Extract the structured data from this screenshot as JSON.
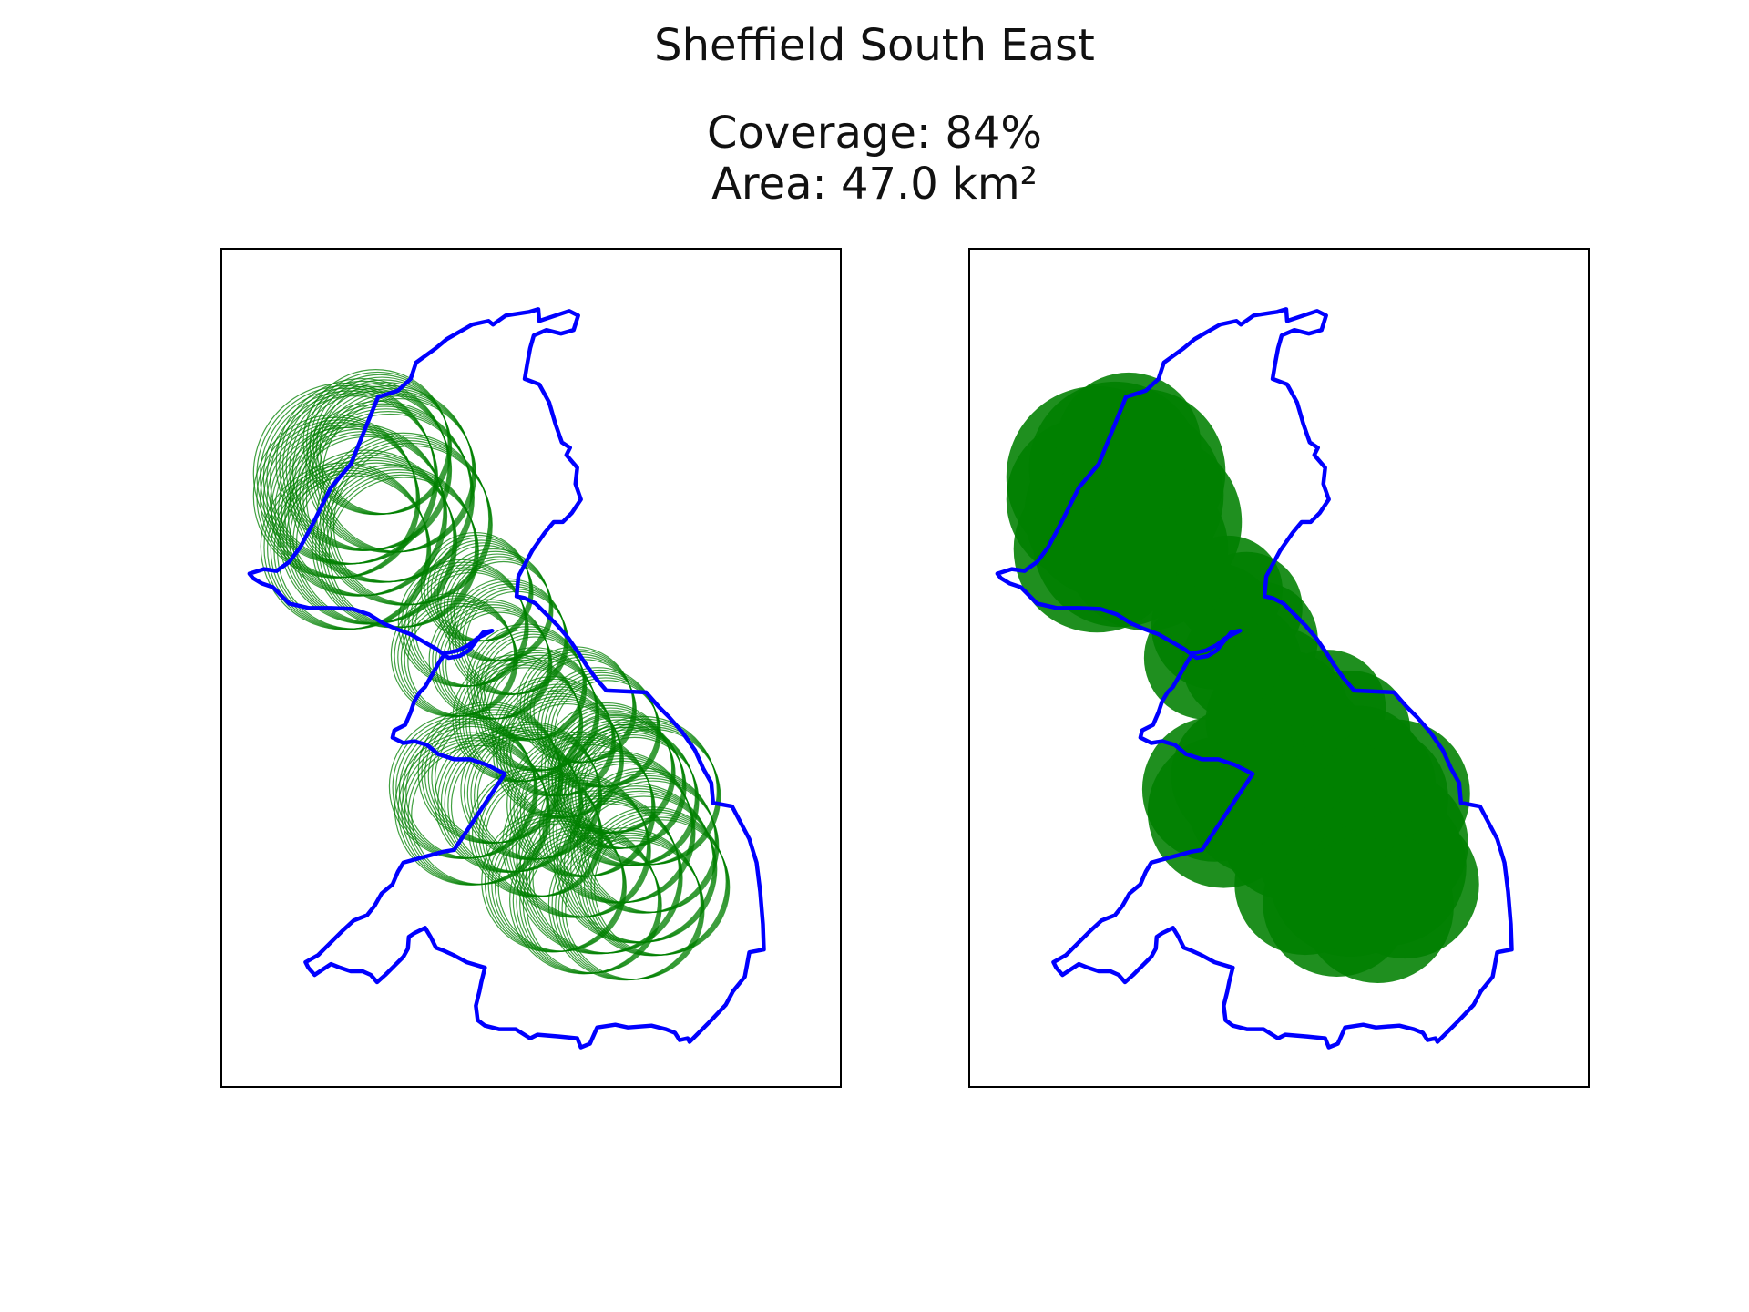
{
  "figure": {
    "title": "Sheffield South East",
    "coverage_text": "Coverage: 84%",
    "area_text": "Area: 47.0 km²"
  },
  "colors": {
    "boundary": "#0000ff",
    "coverage": "#008000",
    "frame": "#000000"
  },
  "panels": [
    {
      "name": "outline",
      "style": "circle-outlines"
    },
    {
      "name": "filled",
      "style": "filled-circles"
    }
  ]
}
